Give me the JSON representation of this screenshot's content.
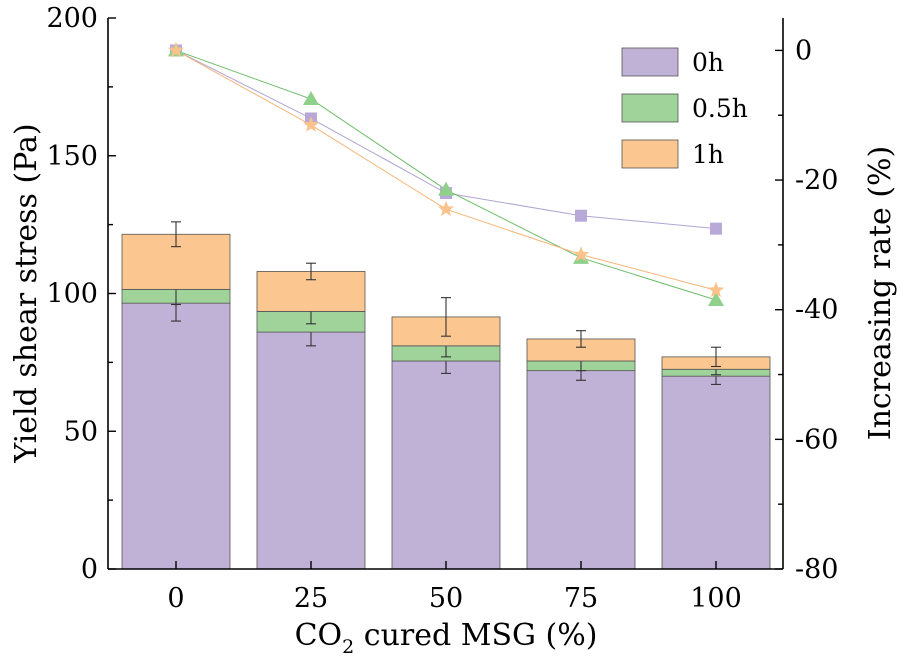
{
  "chart_data": {
    "type": "bar",
    "x_title_main": "CO",
    "x_title_sub": "2",
    "x_title_rest": " cured MSG (%)",
    "ylabel": "Yield shear stress (Pa)",
    "y2label": "Increasing rate (%)",
    "ylim": [
      0,
      200
    ],
    "y2lim": [
      -80,
      5
    ],
    "yticks": [
      "0",
      "50",
      "100",
      "150",
      "200"
    ],
    "y2ticks": [
      "0",
      "-20",
      "-40",
      "-60",
      "-80"
    ],
    "categories": [
      "0",
      "25",
      "50",
      "75",
      "100"
    ],
    "stack_series": [
      {
        "name": "0h",
        "color": "#c0b2d6",
        "values": [
          96.5,
          86,
          75.5,
          72,
          70
        ],
        "errors": [
          6.5,
          5,
          4.5,
          3.5,
          3
        ]
      },
      {
        "name": "0.5h",
        "color": "#9fd39a",
        "values": [
          5,
          7.5,
          5.5,
          3.5,
          2.5
        ],
        "errors": [
          5.5,
          4.5,
          4,
          3.5,
          2
        ]
      },
      {
        "name": "1h",
        "color": "#fbc690",
        "values": [
          20,
          14.5,
          10.5,
          8,
          4.5
        ],
        "errors": [
          4.5,
          3,
          7,
          3,
          3.5
        ]
      }
    ],
    "rate_series": [
      {
        "name": "0h",
        "color": "#b9a9d8",
        "line": "#b0a4d2",
        "marker": "square",
        "values": [
          0,
          -10.5,
          -22,
          -25.5,
          -27.5
        ]
      },
      {
        "name": "0.5h",
        "color": "#8fd08a",
        "line": "#6cbd6a",
        "marker": "triangle",
        "values": [
          0,
          -7.5,
          -21.5,
          -32,
          -38.5
        ]
      },
      {
        "name": "1h",
        "color": "#fbc28c",
        "line": "#f7b477",
        "marker": "star",
        "values": [
          0,
          -11.5,
          -24.5,
          -31.5,
          -37
        ]
      }
    ],
    "legend": [
      "0h",
      "0.5h",
      "1h"
    ],
    "legend_position": "top-right",
    "grid": false
  }
}
